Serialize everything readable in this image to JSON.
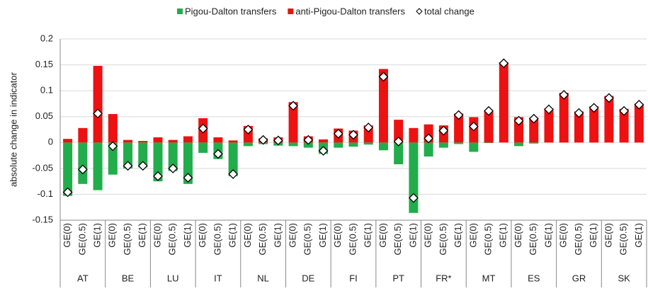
{
  "chart_data": {
    "type": "bar",
    "y_label": "absolute change in indicator",
    "groups": [
      "AT",
      "BE",
      "LU",
      "IT",
      "NL",
      "DE",
      "FI",
      "PT",
      "FR*",
      "MT",
      "ES",
      "GR",
      "SK"
    ],
    "categories": [
      "GE(0)",
      "GE(0.5)",
      "GE(1)"
    ],
    "series": [
      {
        "name": "Pigou-Dalton transfers",
        "color": "#21ad4b",
        "stack": "bar",
        "values": [
          [
            -0.103,
            -0.08,
            -0.092
          ],
          [
            -0.062,
            -0.05,
            -0.048
          ],
          [
            -0.075,
            -0.055,
            -0.08
          ],
          [
            -0.02,
            -0.032,
            -0.065
          ],
          [
            -0.007,
            -0.003,
            -0.006
          ],
          [
            -0.007,
            -0.01,
            -0.022
          ],
          [
            -0.01,
            -0.008,
            -0.004
          ],
          [
            -0.015,
            -0.042,
            -0.136
          ],
          [
            -0.027,
            -0.01,
            -0.003
          ],
          [
            -0.018,
            -0.001,
            0
          ],
          [
            -0.007,
            -0.002,
            0
          ],
          [
            0,
            0,
            0
          ],
          [
            0,
            0,
            0
          ]
        ]
      },
      {
        "name": "anti-Pigou-Dalton transfers",
        "color": "#ee1111",
        "stack": "bar",
        "values": [
          [
            0.007,
            0.028,
            0.148
          ],
          [
            0.055,
            0.005,
            0.003
          ],
          [
            0.01,
            0.005,
            0.012
          ],
          [
            0.047,
            0.01,
            0.004
          ],
          [
            0.032,
            0.008,
            0.01
          ],
          [
            0.078,
            0.012,
            0.006
          ],
          [
            0.027,
            0.023,
            0.033
          ],
          [
            0.142,
            0.044,
            0.028
          ],
          [
            0.035,
            0.033,
            0.056
          ],
          [
            0.049,
            0.062,
            0.155
          ],
          [
            0.049,
            0.048,
            0.066
          ],
          [
            0.096,
            0.06,
            0.07
          ],
          [
            0.09,
            0.065,
            0.075
          ]
        ]
      },
      {
        "name": "total change",
        "color": "#ffffff",
        "stack": "marker",
        "values": [
          [
            -0.096,
            -0.052,
            0.056
          ],
          [
            -0.007,
            -0.045,
            -0.045
          ],
          [
            -0.065,
            -0.05,
            -0.068
          ],
          [
            0.027,
            -0.022,
            -0.061
          ],
          [
            0.025,
            0.005,
            0.004
          ],
          [
            0.071,
            0.005,
            -0.016
          ],
          [
            0.017,
            0.015,
            0.029
          ],
          [
            0.127,
            0.002,
            -0.107
          ],
          [
            0.008,
            0.023,
            0.053
          ],
          [
            0.031,
            0.061,
            0.153
          ],
          [
            0.042,
            0.046,
            0.064
          ],
          [
            0.092,
            0.057,
            0.067
          ],
          [
            0.086,
            0.061,
            0.073
          ]
        ]
      }
    ],
    "ylim": [
      -0.15,
      0.2
    ],
    "yticks": [
      -0.15,
      -0.1,
      -0.05,
      0,
      0.05,
      0.1,
      0.15,
      0.2
    ],
    "grid": true
  }
}
